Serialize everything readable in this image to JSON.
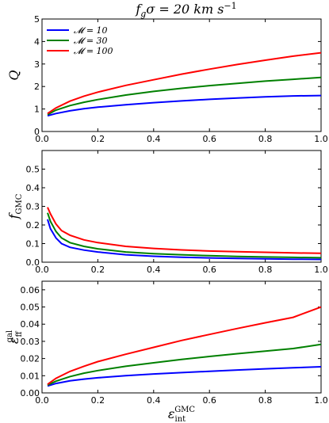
{
  "figure": {
    "title": {
      "main": "f",
      "sub": "g",
      "rest": "σ = 20 km s",
      "sup": "−1"
    }
  },
  "chart_data": [
    {
      "type": "line",
      "ylabel": {
        "main": "Q",
        "sub": ""
      },
      "xlabel": null,
      "xlim": [
        0.0,
        1.0
      ],
      "ylim": [
        0,
        5
      ],
      "xticks": [
        "0.0",
        "0.2",
        "0.4",
        "0.6",
        "0.8",
        "1.0"
      ],
      "yticks": [
        "0",
        "1",
        "2",
        "3",
        "4",
        "5"
      ],
      "legend": {
        "position": "top-left"
      },
      "x": [
        0.02,
        0.05,
        0.1,
        0.15,
        0.2,
        0.3,
        0.4,
        0.5,
        0.6,
        0.7,
        0.8,
        0.9,
        1.0
      ],
      "series": [
        {
          "name": "𝓜 = 10",
          "color": "#0000ff",
          "values": [
            0.7,
            0.8,
            0.92,
            1.01,
            1.08,
            1.19,
            1.28,
            1.36,
            1.43,
            1.49,
            1.54,
            1.58,
            1.6
          ]
        },
        {
          "name": "𝓜 = 30",
          "color": "#008000",
          "values": [
            0.75,
            0.95,
            1.15,
            1.3,
            1.42,
            1.62,
            1.78,
            1.92,
            2.04,
            2.14,
            2.24,
            2.32,
            2.4
          ]
        },
        {
          "name": "𝓜 = 100",
          "color": "#ff0000",
          "values": [
            0.8,
            1.05,
            1.35,
            1.57,
            1.75,
            2.05,
            2.3,
            2.55,
            2.77,
            2.98,
            3.17,
            3.35,
            3.5
          ]
        }
      ]
    },
    {
      "type": "line",
      "ylabel": {
        "main": "f",
        "sub": "GMC"
      },
      "xlabel": null,
      "xlim": [
        0.0,
        1.0
      ],
      "ylim": [
        0,
        0.6
      ],
      "xticks": [
        "0.0",
        "0.2",
        "0.4",
        "0.6",
        "0.8",
        "1.0"
      ],
      "yticks": [
        "0.0",
        "0.1",
        "0.2",
        "0.3",
        "0.4",
        "0.5"
      ],
      "x": [
        0.02,
        0.03,
        0.05,
        0.07,
        0.1,
        0.15,
        0.2,
        0.3,
        0.4,
        0.5,
        0.6,
        0.7,
        0.8,
        0.9,
        1.0
      ],
      "series": [
        {
          "name": "𝓜 = 10",
          "color": "#0000ff",
          "values": [
            0.23,
            0.18,
            0.13,
            0.1,
            0.08,
            0.065,
            0.055,
            0.04,
            0.032,
            0.027,
            0.023,
            0.02,
            0.018,
            0.016,
            0.015
          ]
        },
        {
          "name": "𝓜 = 30",
          "color": "#008000",
          "values": [
            0.265,
            0.22,
            0.165,
            0.13,
            0.105,
            0.085,
            0.072,
            0.055,
            0.046,
            0.04,
            0.035,
            0.031,
            0.028,
            0.026,
            0.024
          ]
        },
        {
          "name": "𝓜 = 100",
          "color": "#ff0000",
          "values": [
            0.295,
            0.26,
            0.205,
            0.17,
            0.145,
            0.12,
            0.105,
            0.085,
            0.074,
            0.066,
            0.06,
            0.056,
            0.053,
            0.05,
            0.048
          ]
        }
      ]
    },
    {
      "type": "line",
      "ylabel": {
        "main": "ε",
        "sub": "ff",
        "sup": "gal"
      },
      "xlabel": {
        "main": "ε",
        "sub": "int",
        "sup": "GMC"
      },
      "xlim": [
        0.0,
        1.0
      ],
      "ylim": [
        0,
        0.065
      ],
      "xticks": [
        "0.0",
        "0.2",
        "0.4",
        "0.6",
        "0.8",
        "1.0"
      ],
      "yticks": [
        "0.00",
        "0.01",
        "0.02",
        "0.03",
        "0.04",
        "0.05",
        "0.06"
      ],
      "x": [
        0.02,
        0.05,
        0.1,
        0.15,
        0.2,
        0.3,
        0.4,
        0.5,
        0.6,
        0.7,
        0.8,
        0.9,
        1.0
      ],
      "series": [
        {
          "name": "𝓜 = 10",
          "color": "#0000ff",
          "values": [
            0.004,
            0.0055,
            0.007,
            0.008,
            0.0088,
            0.01,
            0.011,
            0.0118,
            0.0126,
            0.0133,
            0.014,
            0.0146,
            0.0152
          ]
        },
        {
          "name": "𝓜 = 30",
          "color": "#008000",
          "values": [
            0.0045,
            0.0068,
            0.0095,
            0.0115,
            0.013,
            0.0155,
            0.0175,
            0.0195,
            0.0212,
            0.0228,
            0.0243,
            0.0258,
            0.0282
          ]
        },
        {
          "name": "𝓜 = 100",
          "color": "#ff0000",
          "values": [
            0.005,
            0.0085,
            0.0125,
            0.0155,
            0.0182,
            0.0225,
            0.0265,
            0.0305,
            0.034,
            0.0375,
            0.0408,
            0.044,
            0.05
          ]
        }
      ]
    }
  ]
}
